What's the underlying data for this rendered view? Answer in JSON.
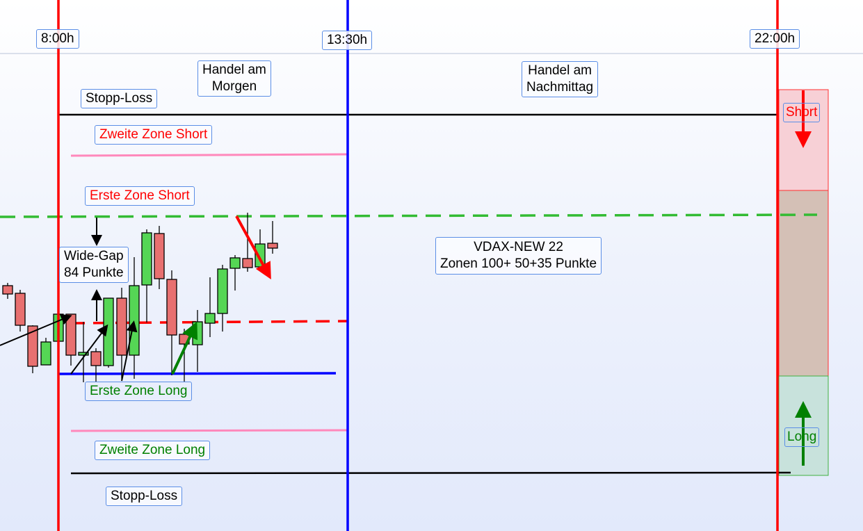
{
  "time_labels": {
    "start": "8:00h",
    "mid": "13:30h",
    "end": "22:00h"
  },
  "session_labels": {
    "morning": "Handel am\nMorgen",
    "afternoon": "Handel am\nNachmittag"
  },
  "zones": {
    "stop_loss_top": "Stopp-Loss",
    "second_zone_short": "Zweite Zone Short",
    "first_zone_short": "Erste Zone Short",
    "first_zone_long": "Erste  Zone Long",
    "second_zone_long": "Zweite  Zone Long",
    "stop_loss_bottom": "Stopp-Loss"
  },
  "gap": {
    "line1": "Wide-Gap",
    "line2": "84 Punkte"
  },
  "info": {
    "line1": "VDAX-NEW 22",
    "line2": "Zonen 100+ 50+35 Punkte"
  },
  "side_panel": {
    "short": "Short",
    "long": "Long"
  },
  "colors": {
    "session_line": "#ff0000",
    "midday_line": "#0000ff",
    "bull": "#55d655",
    "bear": "#e87070",
    "short_zone": "#f7d0d6",
    "neutral_zone": "#d4c0b6",
    "long_zone": "#c8e2dc"
  }
}
